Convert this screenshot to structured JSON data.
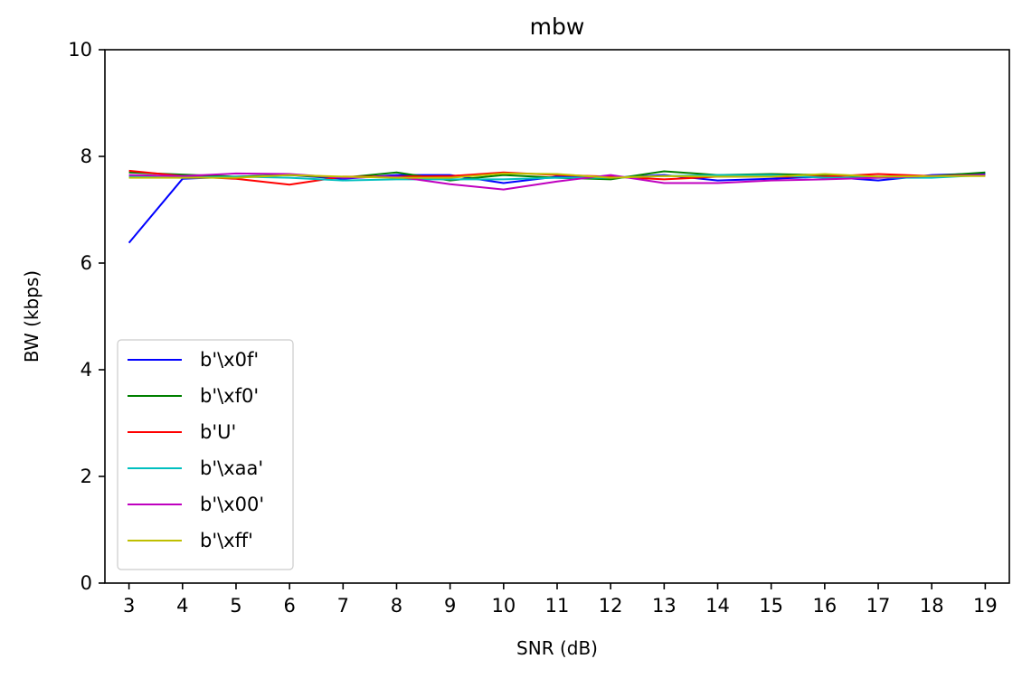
{
  "chart_data": {
    "type": "line",
    "title": "mbw",
    "xlabel": "SNR (dB)",
    "ylabel": "BW (kbps)",
    "xlim": [
      2.55,
      19.45
    ],
    "ylim": [
      0,
      10
    ],
    "x": [
      3,
      4,
      5,
      6,
      7,
      8,
      9,
      10,
      11,
      12,
      13,
      14,
      15,
      16,
      17,
      18,
      19
    ],
    "yticks": [
      0,
      2,
      4,
      6,
      8,
      10
    ],
    "grid": false,
    "legend_position": "lower-left",
    "series": [
      {
        "name": "b'\\x0f'",
        "color": "#0000ff",
        "values": [
          6.38,
          7.58,
          7.62,
          7.65,
          7.58,
          7.65,
          7.65,
          7.5,
          7.62,
          7.6,
          7.65,
          7.55,
          7.58,
          7.62,
          7.55,
          7.65,
          7.68
        ]
      },
      {
        "name": "b'\\xf0'",
        "color": "#008000",
        "values": [
          7.7,
          7.66,
          7.62,
          7.65,
          7.6,
          7.7,
          7.55,
          7.65,
          7.6,
          7.57,
          7.72,
          7.65,
          7.67,
          7.65,
          7.62,
          7.63,
          7.7
        ]
      },
      {
        "name": "b'U'",
        "color": "#ff0000",
        "values": [
          7.73,
          7.63,
          7.58,
          7.47,
          7.62,
          7.62,
          7.63,
          7.7,
          7.65,
          7.62,
          7.57,
          7.62,
          7.62,
          7.62,
          7.67,
          7.63,
          7.65
        ]
      },
      {
        "name": "b'\\xaa'",
        "color": "#00bfbf",
        "values": [
          7.62,
          7.6,
          7.62,
          7.6,
          7.55,
          7.57,
          7.57,
          7.57,
          7.6,
          7.6,
          7.63,
          7.65,
          7.65,
          7.6,
          7.6,
          7.6,
          7.65
        ]
      },
      {
        "name": "b'\\x00'",
        "color": "#bf00bf",
        "values": [
          7.65,
          7.63,
          7.68,
          7.67,
          7.6,
          7.62,
          7.48,
          7.38,
          7.53,
          7.65,
          7.5,
          7.5,
          7.55,
          7.57,
          7.6,
          7.63,
          7.65
        ]
      },
      {
        "name": "b'\\xff'",
        "color": "#bfbf00",
        "values": [
          7.6,
          7.6,
          7.6,
          7.65,
          7.62,
          7.6,
          7.6,
          7.68,
          7.67,
          7.6,
          7.63,
          7.62,
          7.62,
          7.67,
          7.62,
          7.63,
          7.63
        ]
      }
    ]
  }
}
